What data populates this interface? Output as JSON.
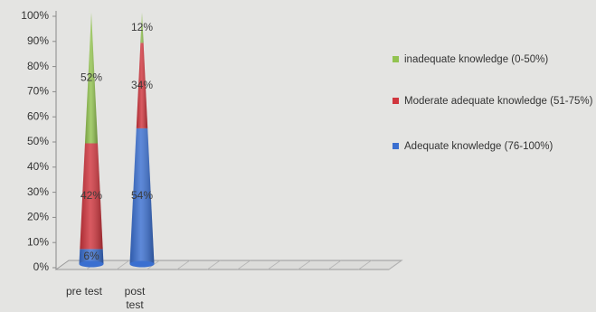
{
  "chart_data": {
    "type": "bar",
    "shape": "cone",
    "stacked": true,
    "categories": [
      "pre test",
      "post test"
    ],
    "series": [
      {
        "name": "Adequate knowledge (76-100%)",
        "color": "#3a6fd0",
        "values": [
          6,
          54
        ],
        "labels": [
          "6%",
          "54%"
        ]
      },
      {
        "name": "Moderate adequate knowledge (51-75%)",
        "color": "#d0363e",
        "values": [
          42,
          34
        ],
        "labels": [
          "42%",
          "34%"
        ]
      },
      {
        "name": "inadequate knowledge (0-50%)",
        "color": "#92c350",
        "values": [
          52,
          12
        ],
        "labels": [
          "52%",
          "12%"
        ]
      }
    ],
    "legend_order": [
      2,
      1,
      0
    ],
    "legend_position": "right",
    "yticks": [
      "0%",
      "10%",
      "20%",
      "30%",
      "40%",
      "50%",
      "60%",
      "70%",
      "80%",
      "90%",
      "100%"
    ],
    "ylim": [
      0,
      100
    ],
    "grid": false
  }
}
